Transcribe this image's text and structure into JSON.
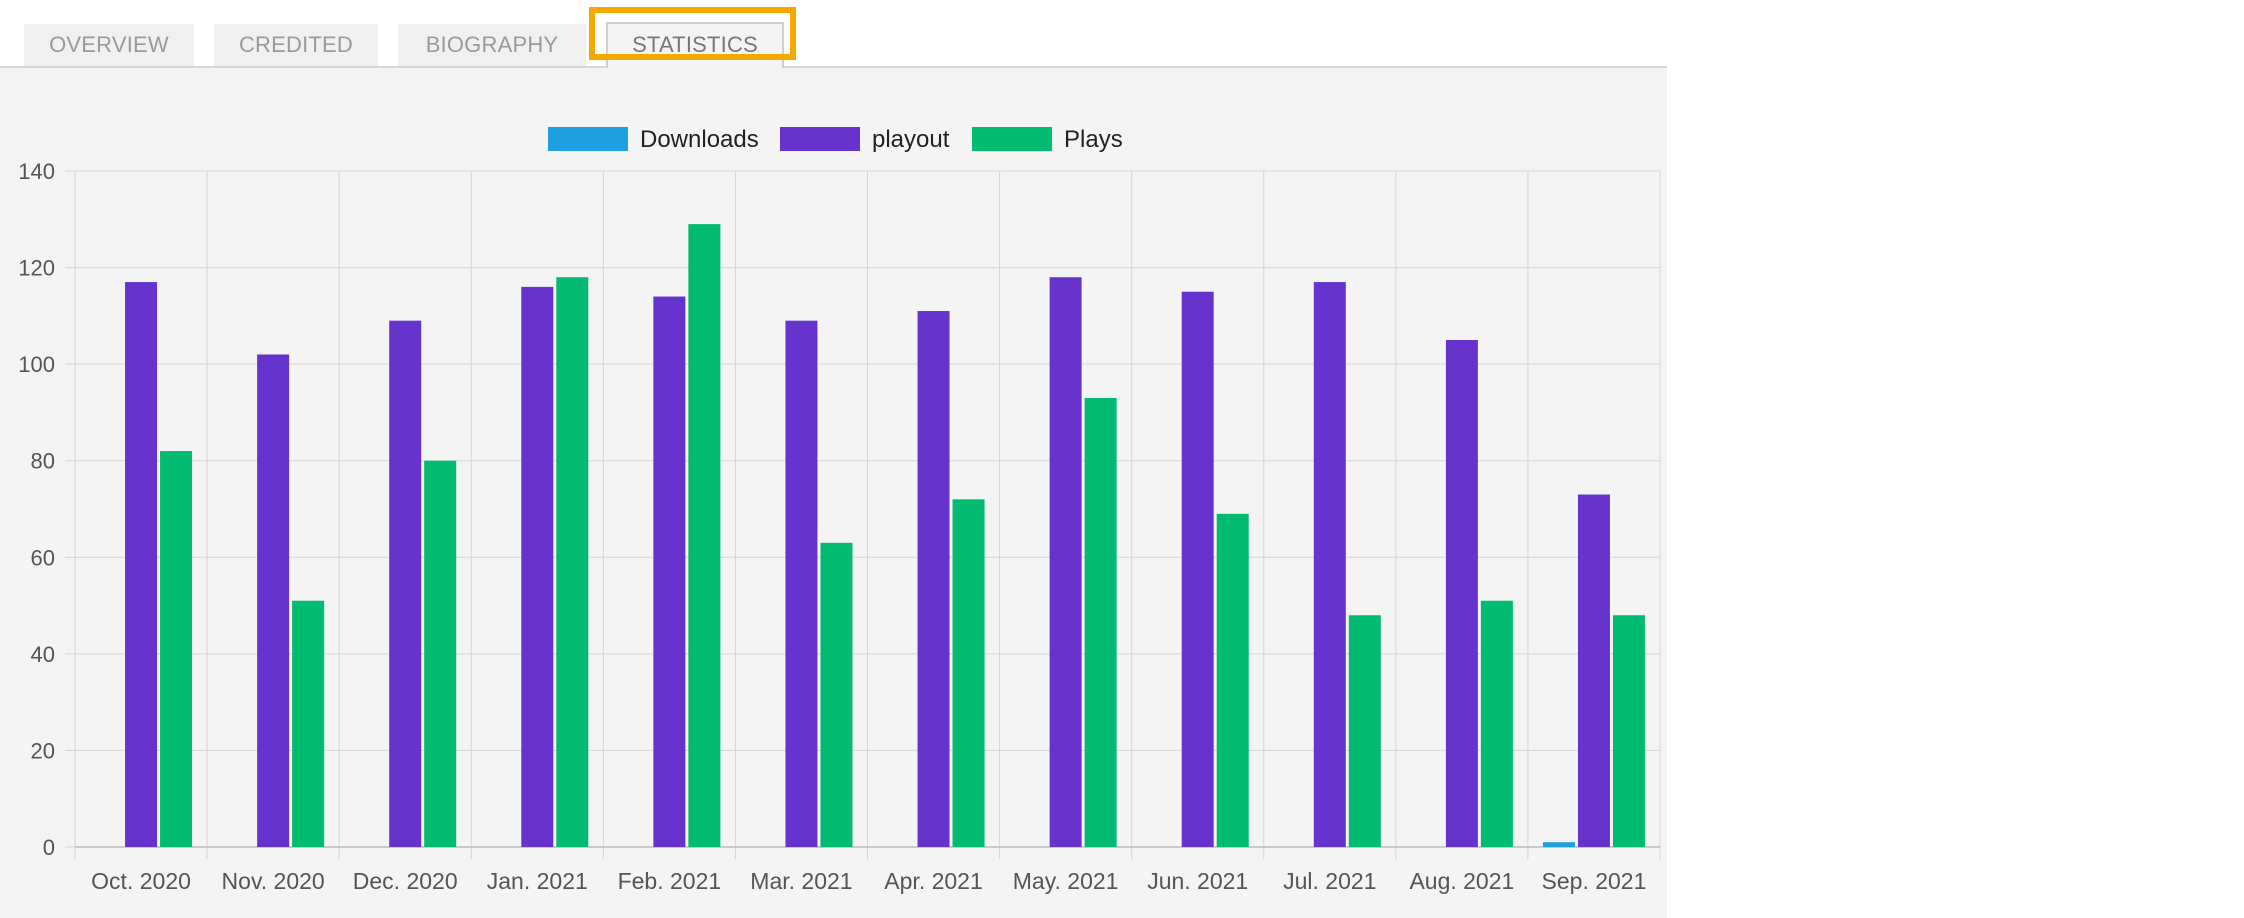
{
  "tabs": [
    {
      "label": "OVERVIEW",
      "active": false
    },
    {
      "label": "CREDITED",
      "active": false
    },
    {
      "label": "BIOGRAPHY",
      "active": false
    },
    {
      "label": "STATISTICS",
      "active": true
    }
  ],
  "colors": {
    "highlight": "#f5a800",
    "downloads": "#1ea0e0",
    "playout": "#6633cc",
    "plays": "#00bb70",
    "grid": "#d6d6d6",
    "axis_text": "#555555"
  },
  "chart_data": {
    "type": "bar",
    "categories": [
      "Oct. 2020",
      "Nov. 2020",
      "Dec. 2020",
      "Jan. 2021",
      "Feb. 2021",
      "Mar. 2021",
      "Apr. 2021",
      "May. 2021",
      "Jun. 2021",
      "Jul. 2021",
      "Aug. 2021",
      "Sep. 2021"
    ],
    "series": [
      {
        "name": "Downloads",
        "color": "#1ea0e0",
        "values": [
          0,
          0,
          0,
          0,
          0,
          0,
          0,
          0,
          0,
          0,
          0,
          1
        ]
      },
      {
        "name": "playout",
        "color": "#6633cc",
        "values": [
          117,
          102,
          109,
          116,
          114,
          109,
          111,
          118,
          115,
          117,
          105,
          73
        ]
      },
      {
        "name": "Plays",
        "color": "#00bb70",
        "values": [
          82,
          51,
          80,
          118,
          129,
          63,
          72,
          93,
          69,
          48,
          51,
          48
        ]
      }
    ],
    "yticks": [
      "0",
      "20",
      "40",
      "60",
      "80",
      "100",
      "120",
      "140"
    ],
    "ylim": [
      0,
      140
    ],
    "grid": true,
    "legend": "top-center"
  }
}
